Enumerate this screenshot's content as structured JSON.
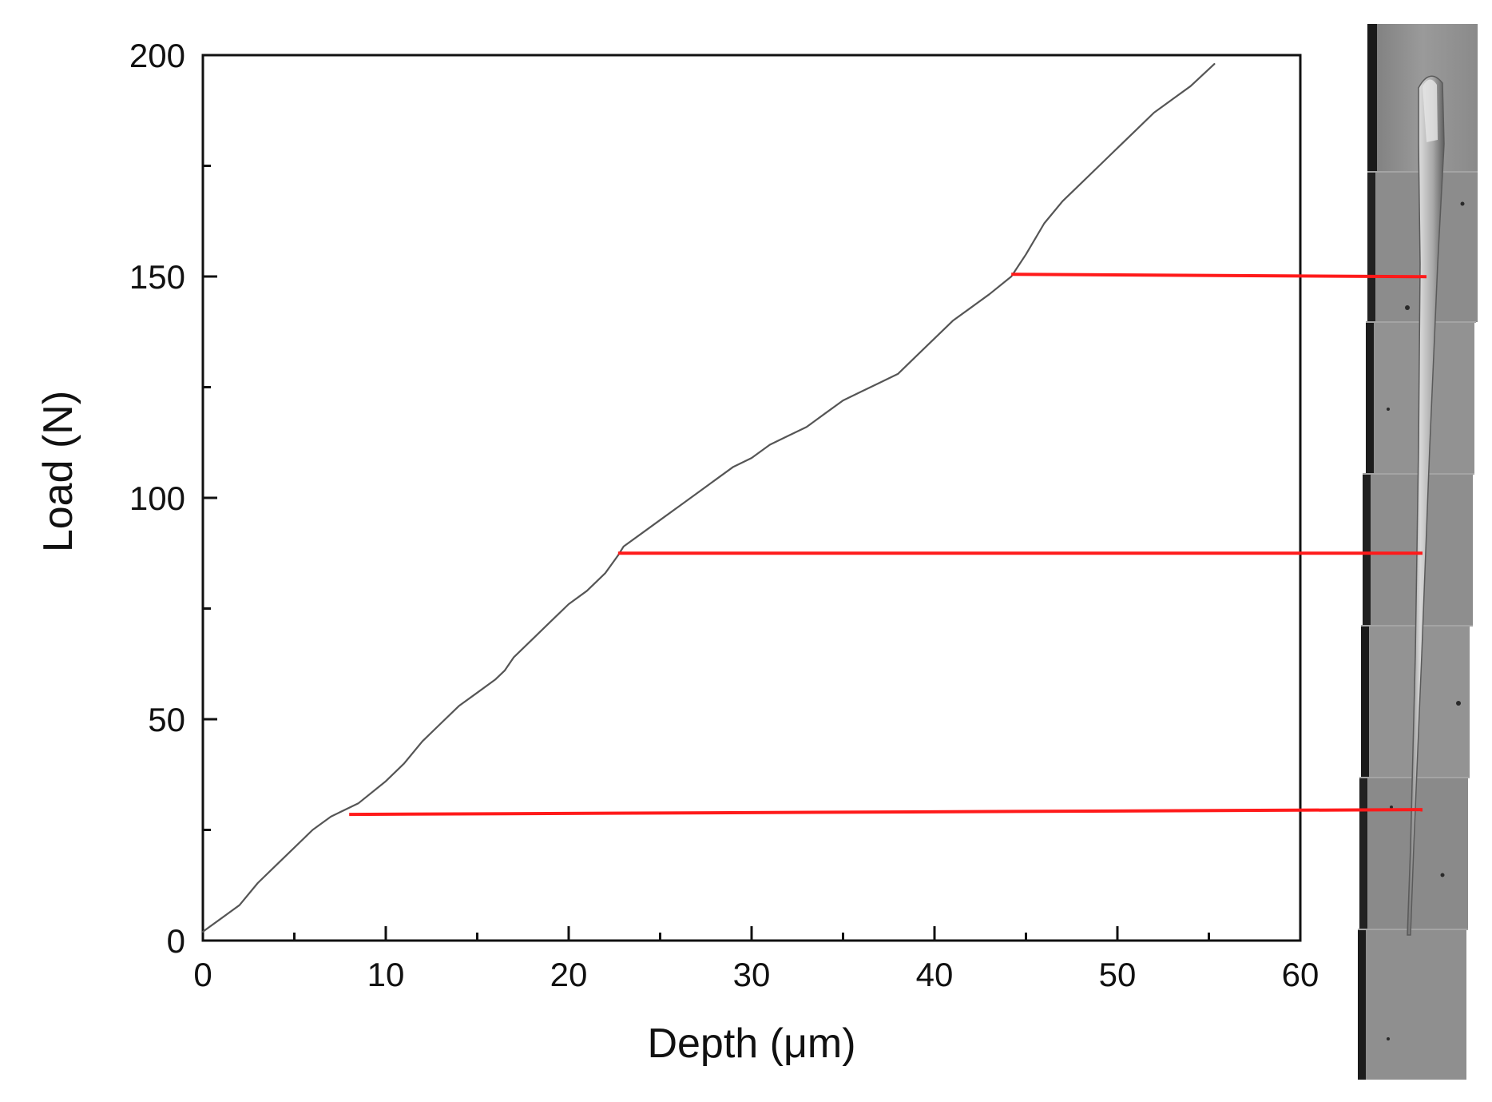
{
  "chart_data": {
    "type": "line",
    "title": "",
    "xlabel": "Depth (μm)",
    "ylabel": "Load (N)",
    "xlim": [
      0,
      60
    ],
    "ylim": [
      0,
      200
    ],
    "x_ticks": [
      0,
      10,
      20,
      30,
      40,
      50,
      60
    ],
    "x_tick_labels": [
      "0",
      "10",
      "20",
      "30",
      "40",
      "50",
      "60"
    ],
    "y_ticks": [
      0,
      50,
      100,
      150,
      200
    ],
    "y_tick_labels": [
      "0",
      "50",
      "100",
      "150",
      "200"
    ],
    "grid": false,
    "legend": "none",
    "series": [
      {
        "color": "#555555",
        "x": [
          0,
          1,
          2,
          3,
          4,
          5,
          6,
          7,
          7.5,
          8.5,
          10,
          11,
          12,
          13,
          14,
          15,
          16,
          16.5,
          17,
          18,
          19,
          20,
          21,
          22,
          22.7,
          23,
          24,
          25,
          26,
          27,
          28,
          29,
          30,
          31,
          32,
          33,
          34,
          35,
          36,
          37,
          38,
          39,
          40,
          41,
          42,
          43,
          44.2,
          45,
          46,
          47,
          48,
          49,
          50,
          51,
          52,
          53,
          54,
          55.3
        ],
        "y": [
          2,
          5,
          8,
          13,
          17,
          21,
          25,
          28,
          29,
          31,
          36,
          40,
          45,
          49,
          53,
          56,
          59,
          61,
          64,
          68,
          72,
          76,
          79,
          83,
          87,
          89,
          92,
          95,
          98,
          101,
          104,
          107,
          109,
          112,
          114,
          116,
          119,
          122,
          124,
          126,
          128,
          132,
          136,
          140,
          143,
          146,
          150,
          155,
          162,
          167,
          171,
          175,
          179,
          183,
          187,
          190,
          193,
          198
        ]
      }
    ],
    "annotations": [
      {
        "type": "hline",
        "color": "#ff1a1a",
        "x_start": 8,
        "y": 28.5,
        "extends_to": "scratch-image"
      },
      {
        "type": "hline",
        "color": "#ff1a1a",
        "x_start": 22.7,
        "y": 87.5,
        "extends_to": "scratch-image"
      },
      {
        "type": "hline",
        "color": "#ff1a1a",
        "x_start": 44.2,
        "y": 150.5,
        "extends_to": "scratch-image"
      }
    ]
  },
  "scratch_image": {
    "type": "micrograph",
    "background_color": "#8f8f8f",
    "edge_color": "#1a1a1a",
    "track_color": "#bdbdbd"
  }
}
